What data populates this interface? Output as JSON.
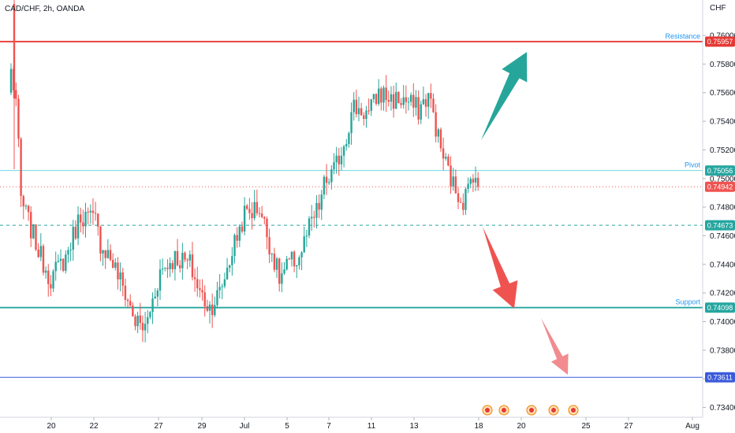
{
  "chart_data": {
    "type": "candlestick",
    "title": "CAD/CHF, 2h, OANDA",
    "currency": "CHF",
    "ylim": [
      0.733,
      0.7626
    ],
    "y_ticks": [
      "0.76000",
      "0.75800",
      "0.75600",
      "0.75400",
      "0.75200",
      "0.75000",
      "0.74800",
      "0.74600",
      "0.74400",
      "0.74200",
      "0.74000",
      "0.73800",
      "0.73600",
      "0.73400"
    ],
    "x_ticks": [
      "20",
      "22",
      "27",
      "29",
      "Jul",
      "5",
      "7",
      "11",
      "13",
      "18",
      "20",
      "25",
      "27",
      "Aug"
    ],
    "colors": {
      "up": "#26a69a",
      "down": "#ef5350",
      "resistance": "#e53935",
      "pivot": "#80deea",
      "support": "#26a6a0",
      "low_line": "#3b5bdb"
    },
    "levels": [
      {
        "name": "Resistance",
        "value": 0.75957,
        "label": "0.75957",
        "style": "solid"
      },
      {
        "name": "Pivot",
        "value": 0.75056,
        "label": "0.75056",
        "style": "solid"
      },
      {
        "name": "",
        "value": 0.74942,
        "label": "0.74942",
        "style": "dotted"
      },
      {
        "name": "",
        "value": 0.74673,
        "label": "0.74673",
        "style": "dashed"
      },
      {
        "name": "Support",
        "value": 0.74098,
        "label": "0.74098",
        "style": "solid"
      },
      {
        "name": "",
        "value": 0.73611,
        "label": "0.73611",
        "style": "solid"
      }
    ],
    "price_path": [
      [
        0,
        0.7575
      ],
      [
        1,
        0.7555
      ],
      [
        2,
        0.7485
      ],
      [
        4,
        0.7465
      ],
      [
        6,
        0.7445
      ],
      [
        8,
        0.743
      ],
      [
        11,
        0.7445
      ],
      [
        14,
        0.7475
      ],
      [
        17,
        0.747
      ],
      [
        18,
        0.7455
      ],
      [
        20,
        0.7445
      ],
      [
        23,
        0.742
      ],
      [
        25,
        0.74
      ],
      [
        27,
        0.7395
      ],
      [
        30,
        0.7435
      ],
      [
        33,
        0.7445
      ],
      [
        36,
        0.744
      ],
      [
        38,
        0.742
      ],
      [
        40,
        0.741
      ],
      [
        42,
        0.742
      ],
      [
        45,
        0.7455
      ],
      [
        47,
        0.7475
      ],
      [
        50,
        0.748
      ],
      [
        52,
        0.7455
      ],
      [
        54,
        0.743
      ],
      [
        56,
        0.744
      ],
      [
        58,
        0.7445
      ],
      [
        60,
        0.7465
      ],
      [
        62,
        0.748
      ],
      [
        63,
        0.7495
      ],
      [
        65,
        0.7505
      ],
      [
        67,
        0.7525
      ],
      [
        69,
        0.755
      ],
      [
        72,
        0.7545
      ],
      [
        74,
        0.756
      ],
      [
        77,
        0.7555
      ],
      [
        79,
        0.7555
      ],
      [
        82,
        0.7548
      ],
      [
        84,
        0.7558
      ],
      [
        85,
        0.7545
      ],
      [
        86,
        0.7528
      ],
      [
        87,
        0.7515
      ],
      [
        88,
        0.7505
      ],
      [
        89,
        0.7495
      ],
      [
        90,
        0.749
      ],
      [
        91,
        0.7485
      ],
      [
        92,
        0.7492
      ],
      [
        93,
        0.7505
      ],
      [
        94,
        0.7499
      ]
    ],
    "arrows": [
      {
        "direction": "up",
        "color": "#26a69a"
      },
      {
        "direction": "down",
        "color": "#ef5350"
      },
      {
        "direction": "down",
        "color": "#f28b8f"
      }
    ],
    "events_count": 5
  }
}
